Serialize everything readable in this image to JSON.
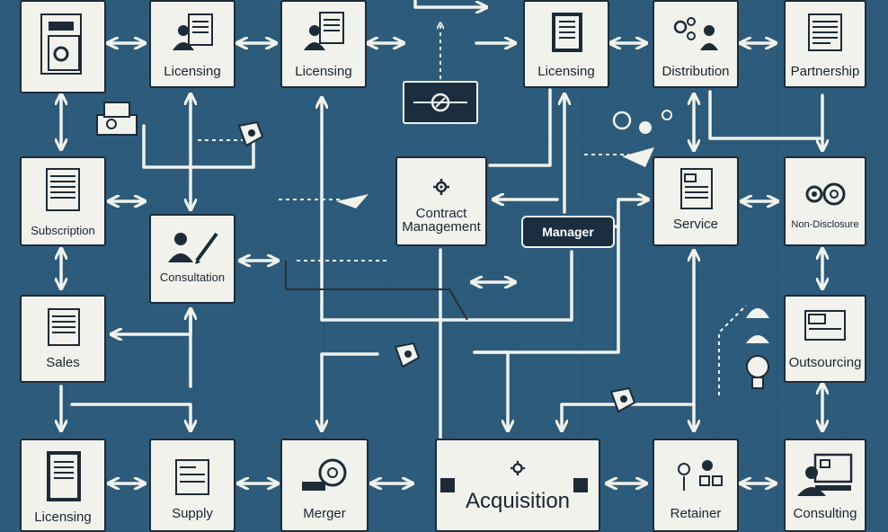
{
  "diagram": {
    "nodes": {
      "top_left_doc": "",
      "licensing_1": "Licensing",
      "licensing_2": "Licensing",
      "licensing_3": "Licensing",
      "distribution": "Distribution",
      "partnership": "Partnership",
      "subscription": "Subscription",
      "consultation": "Consultation",
      "contract_management": "Contract\nManagement",
      "service": "Service",
      "non_disclosure": "Non-Disclosure",
      "sales": "Sales",
      "outsourcing": "Outsourcing",
      "licensing_bottom": "Licensing",
      "supply": "Supply",
      "merger": "Merger",
      "acquisition": "Acquisition",
      "retainer": "Retainer",
      "consulting": "Consulting"
    },
    "manager_tag": "Manager",
    "colors": {
      "background": "#2d5b7b",
      "node_fill": "#f1f2ec",
      "connector": "#f1f2ec",
      "outline": "#1d2b38",
      "tag": "#1b2e40"
    }
  }
}
